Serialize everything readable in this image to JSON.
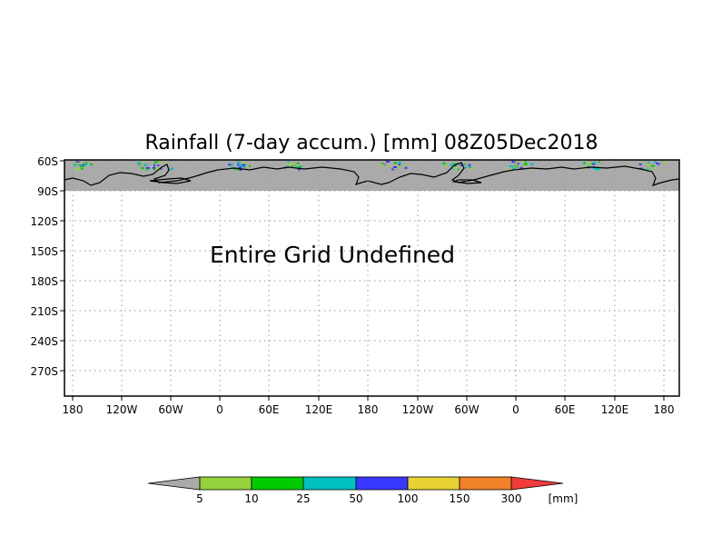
{
  "map": {
    "title": "Rainfall (7-day accum.) [mm] 08Z05Dec2018",
    "message": "Entire Grid Undefined",
    "lat_labels": [
      "60S",
      "90S",
      "120S",
      "150S",
      "180S",
      "210S",
      "240S",
      "270S"
    ],
    "lon_labels": [
      "180",
      "120W",
      "60W",
      "0",
      "60E",
      "120E",
      "180",
      "120W",
      "60W",
      "0",
      "60E",
      "120E",
      "180"
    ],
    "colors": {
      "land": "#aaaaaa",
      "coast": "#000000",
      "grid": "#9a9a9a",
      "frame": "#000000"
    }
  },
  "colorbar": {
    "unit": "[mm]",
    "labels": [
      "5",
      "10",
      "25",
      "50",
      "100",
      "150",
      "300"
    ],
    "colors": [
      "#aaaaaa",
      "#96d23c",
      "#00cc00",
      "#00c0c0",
      "#3737ff",
      "#e6d232",
      "#f08228",
      "#f03c3c"
    ]
  }
}
